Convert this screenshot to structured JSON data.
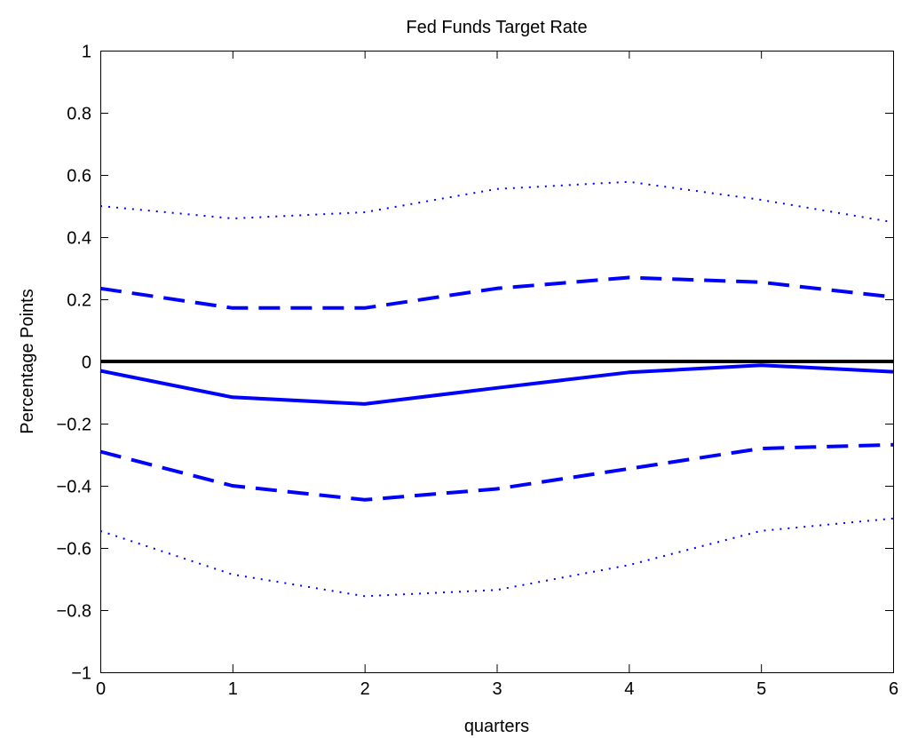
{
  "chart_data": {
    "type": "line",
    "title": "Fed Funds Target Rate",
    "xlabel": "quarters",
    "ylabel": "Percentage Points",
    "xlim": [
      0,
      6
    ],
    "ylim": [
      -1,
      1
    ],
    "x_ticks": [
      "0",
      "1",
      "2",
      "3",
      "4",
      "5",
      "6"
    ],
    "y_ticks": [
      "−1",
      "−0.8",
      "−0.6",
      "−0.4",
      "−0.2",
      "0",
      "0.2",
      "0.4",
      "0.6",
      "0.8",
      "1"
    ],
    "y_tick_values": [
      -1,
      -0.8,
      -0.6,
      -0.4,
      -0.2,
      0,
      0.2,
      0.4,
      0.6,
      0.8,
      1
    ],
    "grid": false,
    "x": [
      0,
      1,
      2,
      3,
      4,
      5,
      6
    ],
    "series": [
      {
        "style": "solid",
        "color": "#0000ff",
        "values": [
          -0.03,
          -0.115,
          -0.137,
          -0.085,
          -0.035,
          -0.012,
          -0.033
        ]
      },
      {
        "style": "dashed",
        "color": "#0000ff",
        "values": [
          0.235,
          0.172,
          0.172,
          0.235,
          0.27,
          0.255,
          0.207
        ]
      },
      {
        "style": "dashed",
        "color": "#0000ff",
        "values": [
          -0.29,
          -0.4,
          -0.445,
          -0.41,
          -0.345,
          -0.28,
          -0.268
        ]
      },
      {
        "style": "dotted",
        "color": "#0000ff",
        "values": [
          0.5,
          0.46,
          0.48,
          0.555,
          0.578,
          0.52,
          0.448
        ]
      },
      {
        "style": "dotted",
        "color": "#0000ff",
        "values": [
          -0.545,
          -0.685,
          -0.755,
          -0.735,
          -0.655,
          -0.545,
          -0.505
        ]
      },
      {
        "style": "zero-line",
        "color": "#000000",
        "values": [
          0,
          0,
          0,
          0,
          0,
          0,
          0
        ]
      }
    ]
  }
}
